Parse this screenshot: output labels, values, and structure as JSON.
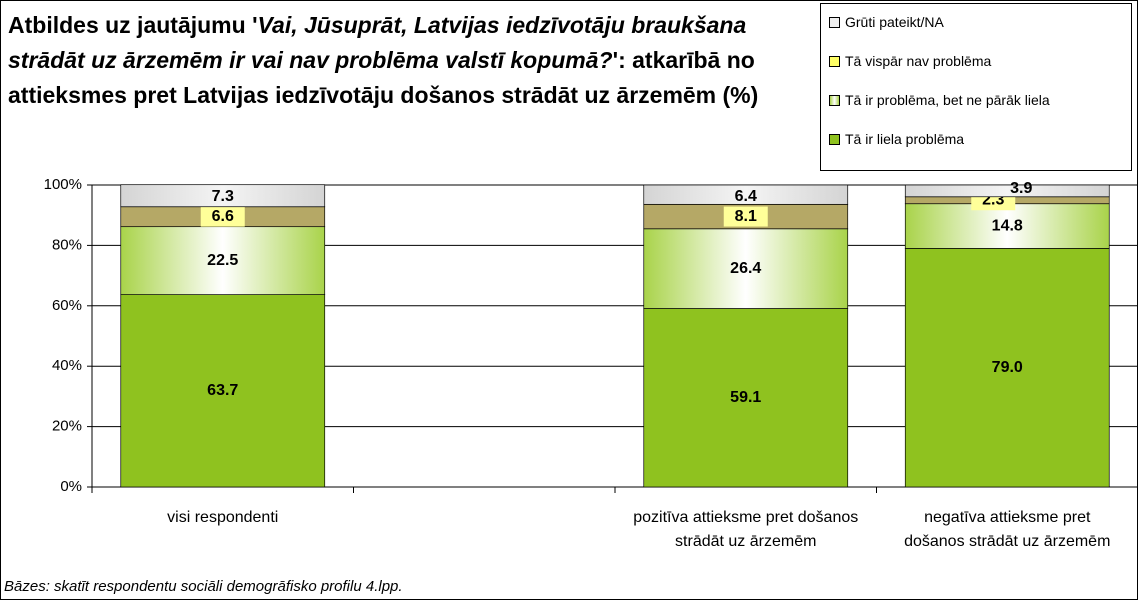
{
  "chart_data": {
    "type": "stacked-bar",
    "title": [
      "Atbildes uz jautājumu '",
      "Vai, Jūsuprāt, Latvijas iedzīvotāju braukšana strādāt uz ārzemēm ir vai nav problēma valstī kopumā?",
      "': atkarībā no attieksmes pret Latvijas iedzīvotāju došanos strādāt uz ārzemēm (%)"
    ],
    "footnote": "Bāzes: skatīt respondentu sociāli demogrāfisko profilu 4.lpp.",
    "categories": [
      "visi respondenti",
      null,
      "pozitīva attieksme pret došanos strādāt uz ārzemēm",
      "negatīva attieksme pret došanos strādāt uz ārzemēm"
    ],
    "series": [
      {
        "name": "Tā ir liela problēma",
        "color": "#8fc21f",
        "values": [
          63.7,
          null,
          59.1,
          79.0
        ],
        "value_labels": [
          "63.7",
          null,
          "59.1",
          "79.0"
        ]
      },
      {
        "name": "Tā ir problēma, bet ne pārāk liela",
        "color": "#a9d34a",
        "values": [
          22.5,
          null,
          26.4,
          14.8
        ]
      },
      {
        "name": "Tā vispār nav problēma",
        "color": "#b5a866",
        "values": [
          6.6,
          null,
          8.1,
          2.3
        ]
      },
      {
        "name": "Grūti pateikt/NA",
        "color": "#d4d4d4",
        "values": [
          7.3,
          null,
          6.4,
          3.9
        ]
      }
    ],
    "ylim": [
      0,
      100
    ],
    "yticks": [
      {
        "value": 0,
        "label": "0%"
      },
      {
        "value": 20,
        "label": "20%"
      },
      {
        "value": 40,
        "label": "40%"
      },
      {
        "value": 60,
        "label": "60%"
      },
      {
        "value": 80,
        "label": "80%"
      },
      {
        "value": 100,
        "label": "100%"
      }
    ],
    "grid": true,
    "legend": "top-right"
  }
}
